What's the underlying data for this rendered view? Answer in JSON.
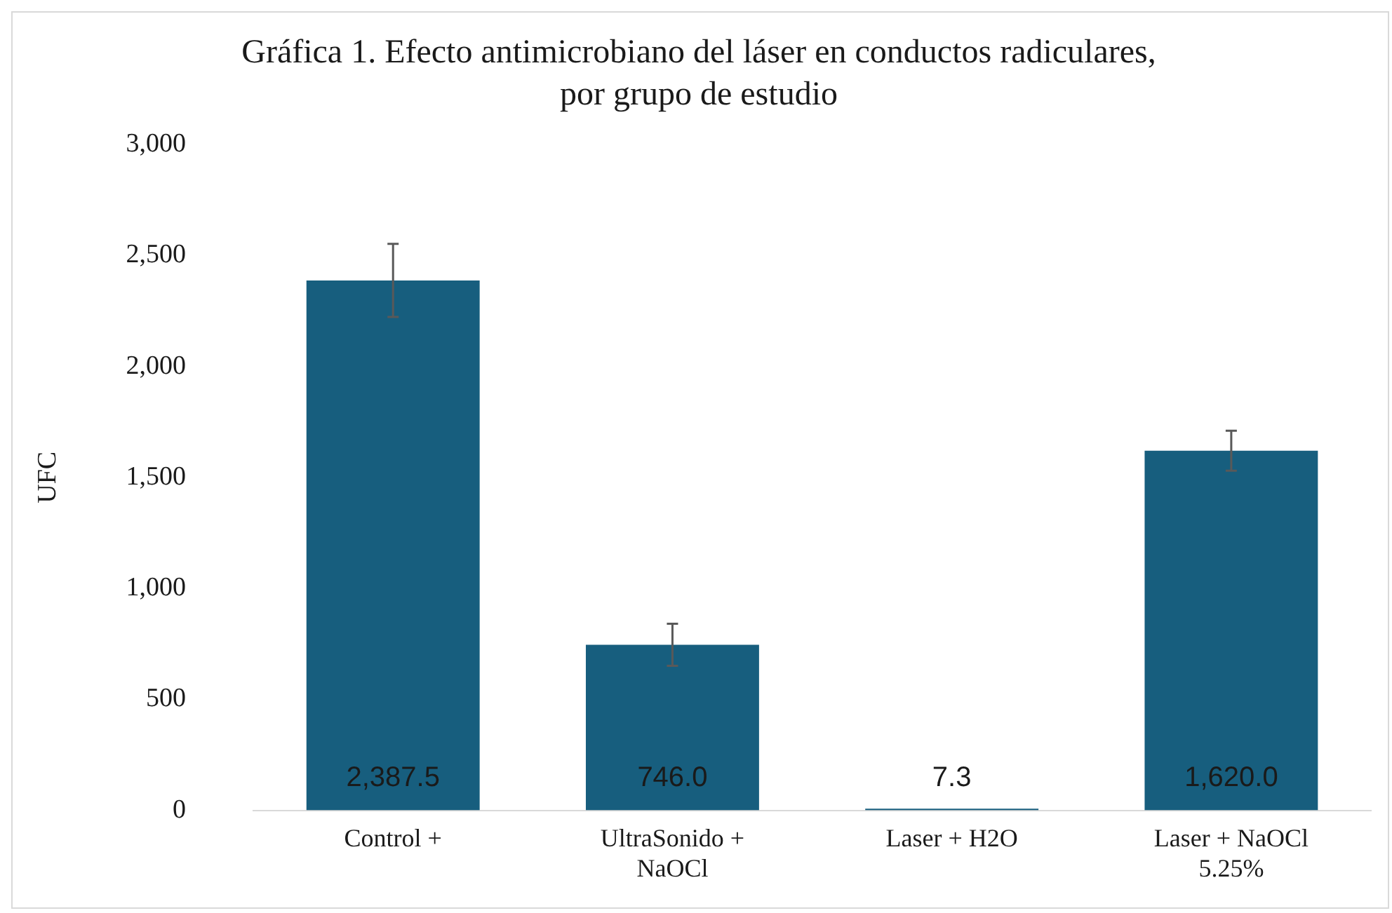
{
  "chart_data": {
    "type": "bar",
    "title": "Gráfica 1. Efecto antimicrobiano del láser en conductos radiculares, por grupo de estudio",
    "ylabel": "UFC",
    "categories": [
      "Control +",
      "UltraSonido + NaOCl",
      "Laser + H2O",
      "Laser + NaOCl 5.25%"
    ],
    "values": [
      2387.5,
      746.0,
      7.3,
      1620.0
    ],
    "errors": [
      165,
      95,
      null,
      90
    ],
    "value_labels": [
      "2,387.5",
      "746.0",
      "7.3",
      "1,620.0"
    ],
    "color": "#175e7e",
    "ylim": [
      0,
      3000
    ],
    "yticks": [
      {
        "value": 0,
        "label": "0"
      },
      {
        "value": 500,
        "label": "500"
      },
      {
        "value": 1000,
        "label": "1,000"
      },
      {
        "value": 1500,
        "label": "1,500"
      },
      {
        "value": 2000,
        "label": "2,000"
      },
      {
        "value": 2500,
        "label": "2,500"
      },
      {
        "value": 3000,
        "label": "3,000"
      }
    ],
    "grid": false,
    "legend": false
  }
}
